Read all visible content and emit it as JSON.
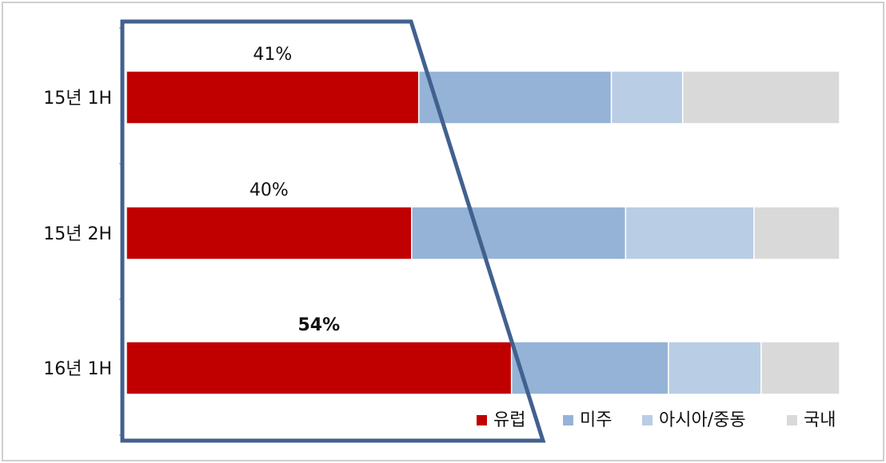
{
  "chart_data": {
    "type": "bar",
    "orientation": "horizontal",
    "stacked": "percent",
    "categories": [
      "15년 1H",
      "15년 2H",
      "16년 1H"
    ],
    "series": [
      {
        "name": "유럽",
        "color": "#c00000",
        "values": [
          41,
          40,
          54
        ]
      },
      {
        "name": "미주",
        "color": "#95b3d7",
        "values": [
          27,
          30,
          22
        ]
      },
      {
        "name": "아시아/중동",
        "color": "#b9cde5",
        "values": [
          10,
          18,
          13
        ]
      },
      {
        "name": "국내",
        "color": "#d9d9d9",
        "values": [
          22,
          12,
          11
        ]
      }
    ],
    "data_labels": [
      {
        "category": "15년 1H",
        "text": "41%",
        "highlight": false
      },
      {
        "category": "15년 2H",
        "text": "40%",
        "highlight": false
      },
      {
        "category": "16년 1H",
        "text": "54%",
        "highlight": true
      }
    ],
    "highlight_color": "#c00000",
    "xlim": [
      0,
      100
    ],
    "legend_position": "bottom-right",
    "grid": false,
    "annotation": {
      "shape": "trapezoid-outline",
      "color": "#41618f"
    }
  }
}
